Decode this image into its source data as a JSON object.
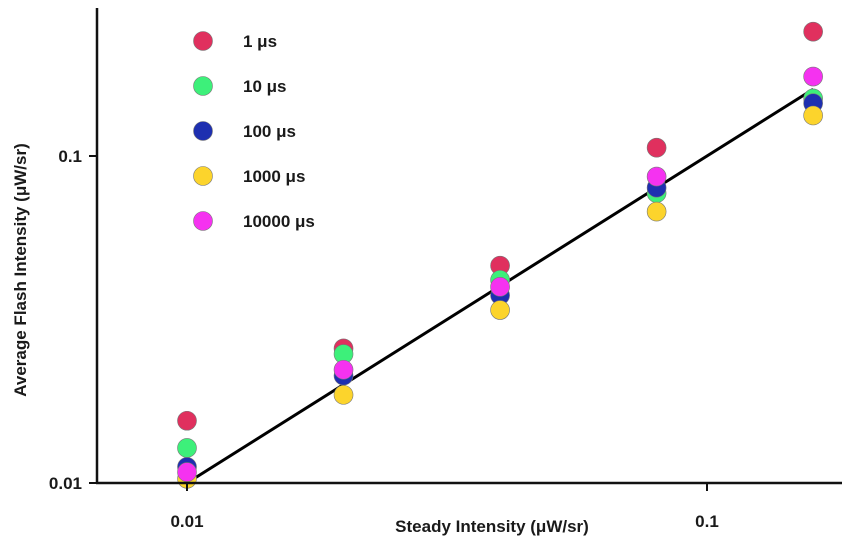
{
  "chart_data": {
    "type": "scatter",
    "xscale": "log",
    "yscale": "log",
    "xlabel": "Steady Intensity (μW/sr)",
    "ylabel": "Average Flash Intensity (μW/sr)",
    "xlim": [
      0.0075,
      0.2
    ],
    "ylim": [
      0.01,
      0.3
    ],
    "xticks": [
      {
        "value": 0.01,
        "label": "0.01"
      },
      {
        "value": 0.1,
        "label": "0.1"
      }
    ],
    "yticks": [
      {
        "value": 0.01,
        "label": "0.01"
      },
      {
        "value": 0.1,
        "label": "0.1"
      }
    ],
    "series": [
      {
        "name": "1 μs",
        "color": "#e0305e",
        "x": [
          0.01,
          0.02,
          0.04,
          0.08,
          0.16
        ],
        "y": [
          0.0155,
          0.0258,
          0.0462,
          0.106,
          0.24
        ]
      },
      {
        "name": "10 μs",
        "color": "#3df07a",
        "x": [
          0.01,
          0.02,
          0.04,
          0.08,
          0.16
        ],
        "y": [
          0.0128,
          0.0248,
          0.0418,
          0.077,
          0.15
        ]
      },
      {
        "name": "100 μs",
        "color": "#1e2fb0",
        "x": [
          0.01,
          0.02,
          0.04,
          0.08,
          0.16
        ],
        "y": [
          0.0112,
          0.0213,
          0.0375,
          0.08,
          0.145
        ]
      },
      {
        "name": "1000 μs",
        "color": "#fcd42c",
        "x": [
          0.01,
          0.02,
          0.04,
          0.08,
          0.16
        ],
        "y": [
          0.0103,
          0.0186,
          0.0338,
          0.0676,
          0.133
        ]
      },
      {
        "name": "10000 μs",
        "color": "#f532f0",
        "x": [
          0.01,
          0.02,
          0.04,
          0.08,
          0.16
        ],
        "y": [
          0.0108,
          0.0222,
          0.0398,
          0.0865,
          0.175
        ]
      }
    ],
    "fit_line": {
      "color": "#000000",
      "x": [
        0.01,
        0.16
      ],
      "y": [
        0.01,
        0.16
      ]
    },
    "legend": "top-left"
  }
}
